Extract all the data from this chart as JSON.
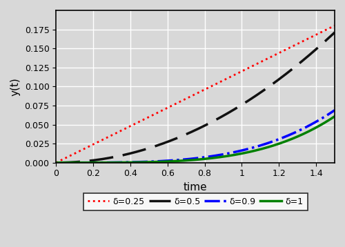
{
  "title": "",
  "xlabel": "time",
  "ylabel": "y(t)",
  "xlim": [
    0,
    1.5
  ],
  "ylim": [
    0,
    0.2
  ],
  "yticks": [
    0.0,
    0.025,
    0.05,
    0.075,
    0.1,
    0.125,
    0.15,
    0.175
  ],
  "xticks": [
    0,
    0.2,
    0.4,
    0.6,
    0.8,
    1.0,
    1.2,
    1.4
  ],
  "deltas": [
    0.25,
    0.5,
    0.9,
    1.0
  ],
  "powers": [
    1.0,
    2.0,
    3.6,
    4.0
  ],
  "scales": [
    0.12,
    0.076,
    0.016,
    0.012
  ],
  "colors": [
    "red",
    "#111111",
    "blue",
    "green"
  ],
  "linestyles": [
    "dotted",
    "dashed",
    "dashdot",
    "solid"
  ],
  "linewidths": [
    2.0,
    2.5,
    2.5,
    2.5
  ],
  "labels": [
    "δ=0.25",
    "δ=0.5",
    "δ=0.9",
    "δ=1"
  ],
  "grid": true,
  "background_color": "#d8d8d8",
  "t_max": 1.5,
  "n_points": 500
}
